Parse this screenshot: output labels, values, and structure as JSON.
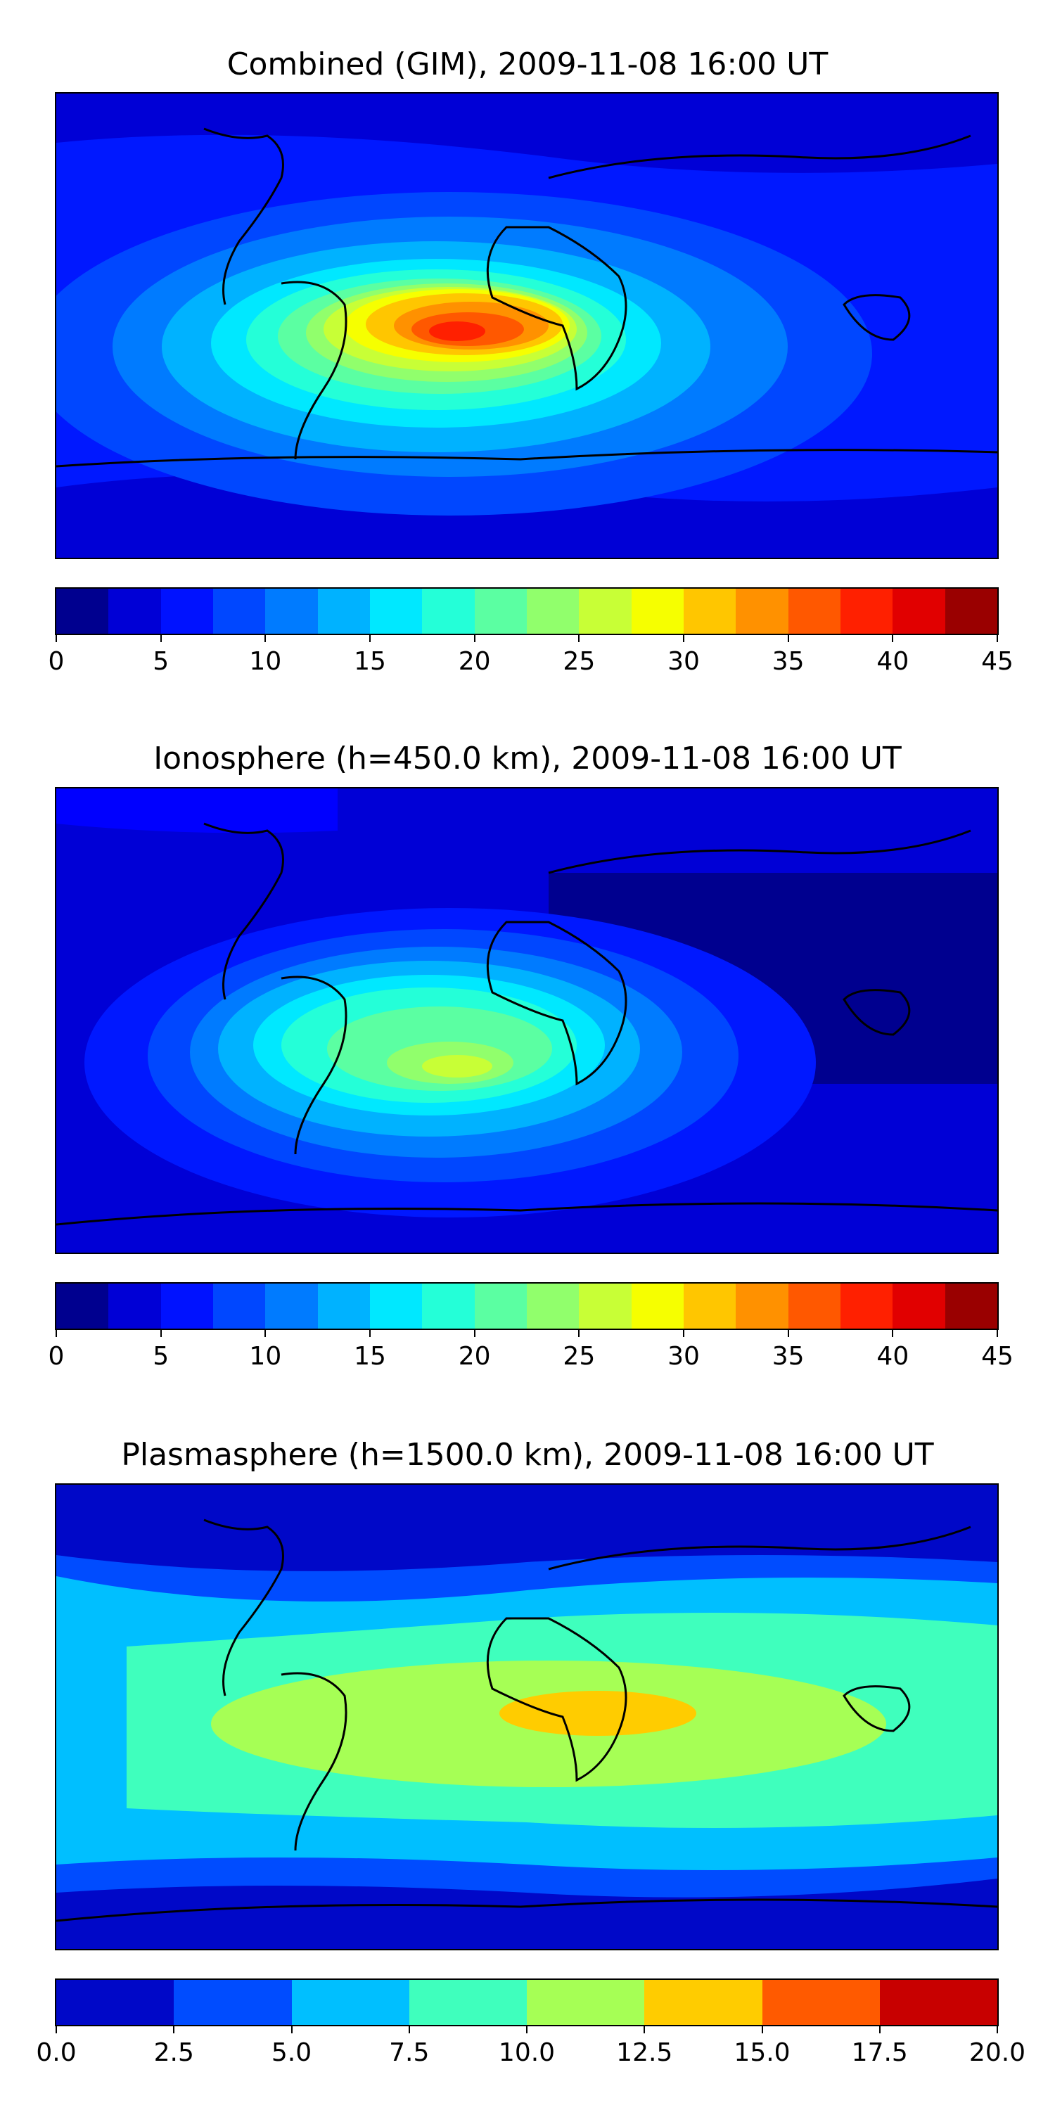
{
  "panels": [
    {
      "title": "Combined (GIM), 2009-11-08 16:00 UT",
      "colorbar": {
        "colors": [
          "#00008f",
          "#0000d6",
          "#0012ff",
          "#0047ff",
          "#007bff",
          "#00b2ff",
          "#00e8ff",
          "#24ffd8",
          "#5bffa2",
          "#91ff6c",
          "#c8ff36",
          "#f6ff00",
          "#ffc600",
          "#ff9100",
          "#ff5800",
          "#ff2000",
          "#e10000",
          "#9a0000"
        ],
        "tick_labels": [
          "0",
          "5",
          "10",
          "15",
          "20",
          "25",
          "30",
          "35",
          "40",
          "45"
        ]
      }
    },
    {
      "title": "Ionosphere  (h=450.0 km), 2009-11-08 16:00 UT",
      "colorbar": {
        "colors": [
          "#00008f",
          "#0000d6",
          "#0012ff",
          "#0047ff",
          "#007bff",
          "#00b2ff",
          "#00e8ff",
          "#24ffd8",
          "#5bffa2",
          "#91ff6c",
          "#c8ff36",
          "#f6ff00",
          "#ffc600",
          "#ff9100",
          "#ff5800",
          "#ff2000",
          "#e10000",
          "#9a0000"
        ],
        "tick_labels": [
          "0",
          "5",
          "10",
          "15",
          "20",
          "25",
          "30",
          "35",
          "40",
          "45"
        ]
      }
    },
    {
      "title": "Plasmasphere (h=1500.0 km), 2009-11-08 16:00 UT",
      "colorbar": {
        "colors": [
          "#0008c8",
          "#004cff",
          "#00bfff",
          "#3fffbd",
          "#a6ff55",
          "#ffcc00",
          "#ff5a00",
          "#c80000"
        ],
        "tick_labels": [
          "0.0",
          "2.5",
          "5.0",
          "7.5",
          "10.0",
          "12.5",
          "15.0",
          "17.5",
          "20.0"
        ]
      }
    }
  ]
}
